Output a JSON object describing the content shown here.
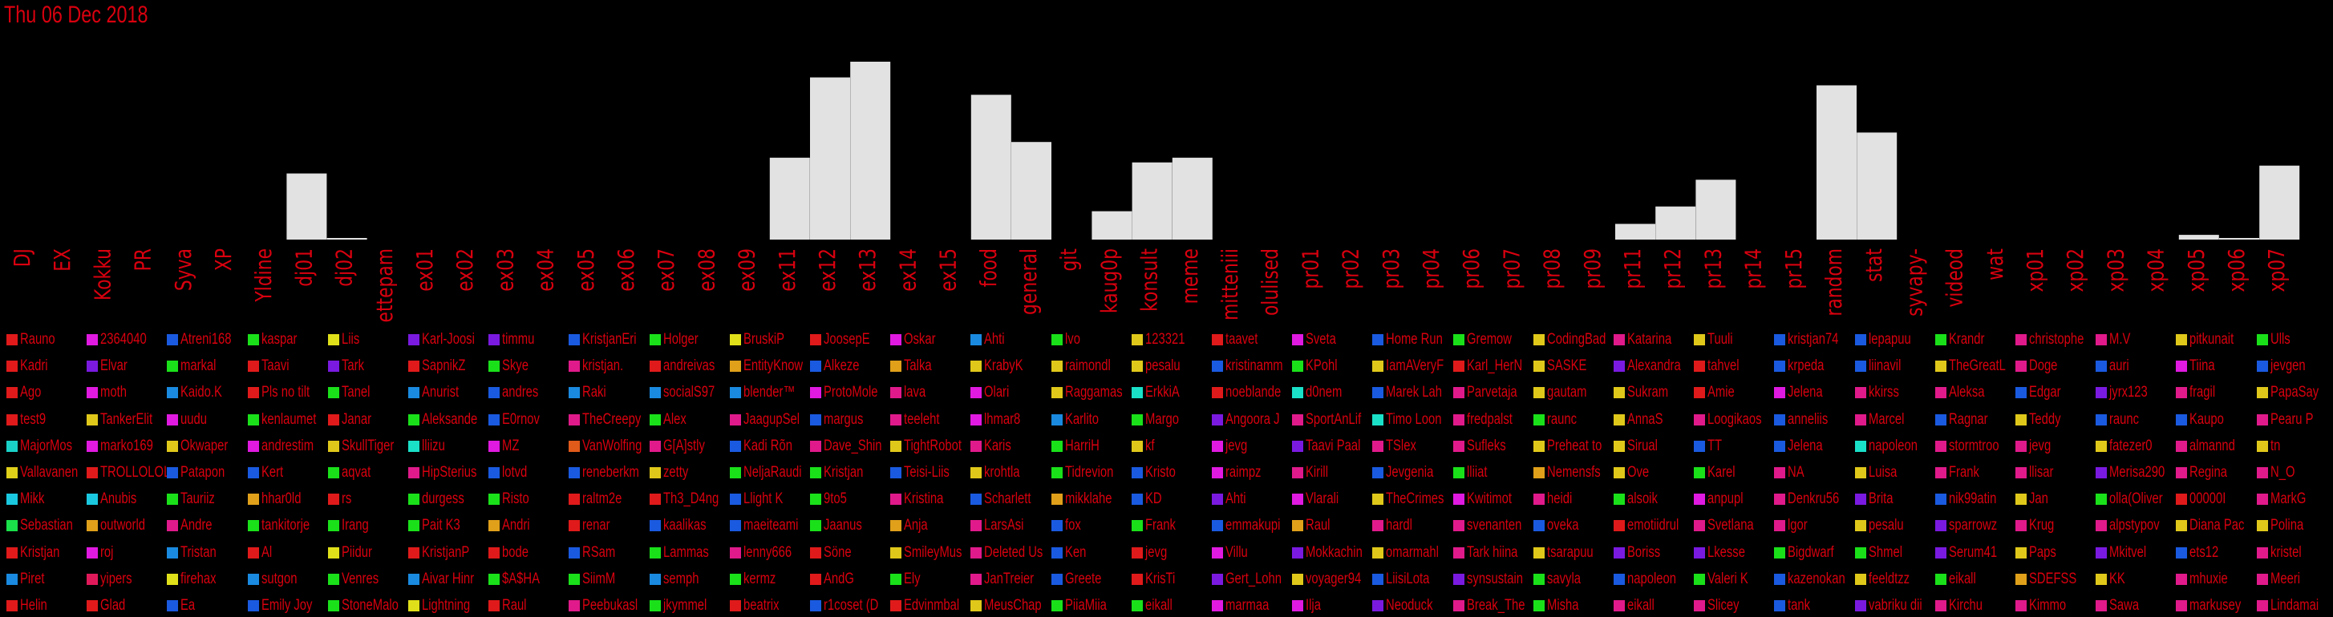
{
  "date_title": "Thu 06 Dec 2018",
  "colors": {
    "text": "#d9000f",
    "bar": "#e2e2e2",
    "background": "#000000"
  },
  "chart_data": {
    "type": "bar",
    "title": "Thu 06 Dec 2018",
    "categories": [
      "DJ",
      "EX",
      "Kokku",
      "PR",
      "Syva",
      "XP",
      "Yldine",
      "dj01",
      "dj02",
      "ettepam",
      "ex01",
      "ex02",
      "ex03",
      "ex04",
      "ex05",
      "ex06",
      "ex07",
      "ex08",
      "ex09",
      "ex11",
      "ex12",
      "ex13",
      "ex14",
      "ex15",
      "food",
      "general",
      "git",
      "kaug0p",
      "konsult",
      "meme",
      "mitteniii",
      "olulised",
      "pr01",
      "pr02",
      "pr03",
      "pr04",
      "pr06",
      "pr07",
      "pr08",
      "pr09",
      "pr11",
      "pr12",
      "pr13",
      "pr14",
      "pr15",
      "random",
      "stat",
      "syvapy-",
      "videod",
      "wat",
      "xp01",
      "xp02",
      "xp03",
      "xp04",
      "xp05",
      "xp06",
      "xp07"
    ],
    "values": [
      0,
      0,
      0,
      0,
      0,
      0,
      0,
      42,
      1,
      0,
      0,
      0,
      0,
      0,
      0,
      0,
      0,
      0,
      0,
      52,
      103,
      113,
      0,
      0,
      92,
      62,
      0,
      18,
      49,
      52,
      0,
      0,
      0,
      0,
      0,
      0,
      0,
      0,
      0,
      0,
      10,
      21,
      38,
      0,
      0,
      98,
      68,
      0,
      0,
      0,
      0,
      0,
      0,
      0,
      3,
      1,
      47
    ],
    "ylim": [
      0,
      113
    ],
    "grid": false,
    "legend": "bottom"
  },
  "legend_columns": [
    [
      [
        "Rauno",
        "#e01a1a"
      ],
      [
        "Kadri",
        "#e01a1a"
      ],
      [
        "Ago",
        "#e01a1a"
      ],
      [
        "test9",
        "#e01a1a"
      ],
      [
        "MajorMos",
        "#1ad1c8"
      ],
      [
        "Vallavanen",
        "#e0d01a"
      ],
      [
        "Mikk",
        "#1ac8e0"
      ],
      [
        "Sebastian",
        "#1ae04a"
      ],
      [
        "Kristjan",
        "#e01a1a"
      ],
      [
        "Piret",
        "#1a8ae0"
      ],
      [
        "Helin",
        "#e01a1a"
      ]
    ],
    [
      [
        "2364040",
        "#e01ae0"
      ],
      [
        "Elvar",
        "#7a1ae0"
      ],
      [
        "moth",
        "#e01ae0"
      ],
      [
        "TankerElit",
        "#e0c81a"
      ],
      [
        "marko169",
        "#e01ae0"
      ],
      [
        "TROLLOLOL",
        "#e01a1a"
      ],
      [
        "Anubis",
        "#1ac8e0"
      ],
      [
        "outworld",
        "#e0a01a"
      ],
      [
        "roj",
        "#e01ae0"
      ],
      [
        "yipers",
        "#e01a5a"
      ],
      [
        "Glad",
        "#e01a1a"
      ]
    ],
    [
      [
        "Atreni168",
        "#1a5ae0"
      ],
      [
        "markal",
        "#1ae01a"
      ],
      [
        "Kaido.K",
        "#1a8ae0"
      ],
      [
        "uudu",
        "#e01ae0"
      ],
      [
        "Okwaper",
        "#e0c81a"
      ],
      [
        "Patapon",
        "#1a5ae0"
      ],
      [
        "Tauriiz",
        "#1ae01a"
      ],
      [
        "Andre",
        "#e01a8a"
      ],
      [
        "Tristan",
        "#1a8ae0"
      ],
      [
        "firehax",
        "#e0e01a"
      ],
      [
        "Ea",
        "#1a5ae0"
      ]
    ],
    [
      [
        "kaspar",
        "#1ae01a"
      ],
      [
        "Taavi",
        "#e01a1a"
      ],
      [
        "Pls no tilt",
        "#e01a1a"
      ],
      [
        "kenlaumet",
        "#1ae01a"
      ],
      [
        "andrestim",
        "#e01ae0"
      ],
      [
        "Kert",
        "#1a5ae0"
      ],
      [
        "hhar0ld",
        "#e0a01a"
      ],
      [
        "tankitorje",
        "#1ae01a"
      ],
      [
        "Al",
        "#e01a1a"
      ],
      [
        "sutgon",
        "#1a8ae0"
      ],
      [
        "Emily Joy",
        "#1a5ae0"
      ]
    ],
    [
      [
        "Liis",
        "#e0e01a"
      ],
      [
        "Tark",
        "#7a1ae0"
      ],
      [
        "Tanel",
        "#1ae01a"
      ],
      [
        "Janar",
        "#e01a1a"
      ],
      [
        "SkullTiger",
        "#e0c81a"
      ],
      [
        "aqvat",
        "#1ae01a"
      ],
      [
        "rs",
        "#e01a1a"
      ],
      [
        "Irang",
        "#1ae01a"
      ],
      [
        "Piidur",
        "#e0e01a"
      ],
      [
        "Venres",
        "#1ae01a"
      ],
      [
        "StoneMalo",
        "#1ae01a"
      ]
    ],
    [
      [
        "Karl-Joosi",
        "#7a1ae0"
      ],
      [
        "SapnikZ",
        "#e01a1a"
      ],
      [
        "Anurist",
        "#1a8ae0"
      ],
      [
        "Aleksande",
        "#1ae01a"
      ],
      [
        "lliizu",
        "#1ae0c8"
      ],
      [
        "HipSterius",
        "#e01a8a"
      ],
      [
        "durgess",
        "#1ae01a"
      ],
      [
        "Pait K3",
        "#1ae01a"
      ],
      [
        "KristjanP",
        "#e01a1a"
      ],
      [
        "Aivar Hinr",
        "#1a8ae0"
      ],
      [
        "Lightning",
        "#e0e01a"
      ]
    ],
    [
      [
        "timmu",
        "#7a1ae0"
      ],
      [
        "Skye",
        "#1ae01a"
      ],
      [
        "andres",
        "#1a5ae0"
      ],
      [
        "E0rnov",
        "#1a5ae0"
      ],
      [
        "MZ",
        "#e01ae0"
      ],
      [
        "lotvd",
        "#1a5ae0"
      ],
      [
        "Risto",
        "#1ae01a"
      ],
      [
        "Andri",
        "#e0a01a"
      ],
      [
        "bode",
        "#e01a1a"
      ],
      [
        "$A$HA",
        "#1ae01a"
      ],
      [
        "Raul",
        "#e01a1a"
      ]
    ],
    [
      [
        "KristjanEri",
        "#1a5ae0"
      ],
      [
        "kristjan.",
        "#e01a8a"
      ],
      [
        "Raki",
        "#1a8ae0"
      ],
      [
        "TheCreepy",
        "#e01a8a"
      ],
      [
        "VanWolfing",
        "#e05a1a"
      ],
      [
        "reneberkm",
        "#1a5ae0"
      ],
      [
        "raltm2e",
        "#e01a1a"
      ],
      [
        "renar",
        "#e01a1a"
      ],
      [
        "RSam",
        "#1a5ae0"
      ],
      [
        "SiimM",
        "#1ae01a"
      ],
      [
        "Peebukasl",
        "#e01a8a"
      ]
    ],
    [
      [
        "Holger",
        "#1ae01a"
      ],
      [
        "andreivas",
        "#e01a1a"
      ],
      [
        "socialS97",
        "#1a8ae0"
      ],
      [
        "Alex",
        "#1ae01a"
      ],
      [
        "G[A]stly",
        "#e01a8a"
      ],
      [
        "zetty",
        "#e0c81a"
      ],
      [
        "Th3_D4ng",
        "#e01a1a"
      ],
      [
        "kaalikas",
        "#1a5ae0"
      ],
      [
        "Lammas",
        "#1ae01a"
      ],
      [
        "semph",
        "#1a8ae0"
      ],
      [
        "jkymmel",
        "#1ae01a"
      ]
    ],
    [
      [
        "BruskiP",
        "#e0e01a"
      ],
      [
        "EntityKnow",
        "#e0a01a"
      ],
      [
        "blender™",
        "#1a8ae0"
      ],
      [
        "JaagupSel",
        "#e01a8a"
      ],
      [
        "Kadi Rõn",
        "#1a5ae0"
      ],
      [
        "NeljaRaudi",
        "#1ae01a"
      ],
      [
        "Llight K",
        "#1a5ae0"
      ],
      [
        "maeiteami",
        "#1a5ae0"
      ],
      [
        "lenny666",
        "#e01a8a"
      ],
      [
        "kermz",
        "#1ae01a"
      ],
      [
        "beatrix",
        "#e01a1a"
      ]
    ],
    [
      [
        "JoosepE",
        "#e01a1a"
      ],
      [
        "Alkeze",
        "#1a5ae0"
      ],
      [
        "ProtoMole",
        "#e01ae0"
      ],
      [
        "margus",
        "#1a5ae0"
      ],
      [
        "Dave_Shin",
        "#e01a8a"
      ],
      [
        "Kristjan",
        "#1ae01a"
      ],
      [
        "9to5",
        "#1ae01a"
      ],
      [
        "Jaanus",
        "#1ae01a"
      ],
      [
        "Söne",
        "#e01a1a"
      ],
      [
        "AndG",
        "#e01a1a"
      ],
      [
        "r1coset (D",
        "#1a5ae0"
      ]
    ],
    [
      [
        "Oskar",
        "#e01ae0"
      ],
      [
        "Talka",
        "#e0a01a"
      ],
      [
        "lava",
        "#e01a8a"
      ],
      [
        "teeleht",
        "#e01a8a"
      ],
      [
        "TightRobot",
        "#e0c81a"
      ],
      [
        "Teisi-Liis",
        "#1a5ae0"
      ],
      [
        "Kristina",
        "#e01a8a"
      ],
      [
        "Anja",
        "#e0a01a"
      ],
      [
        "SmileyMus",
        "#e0c81a"
      ],
      [
        "Ely",
        "#1ae01a"
      ],
      [
        "Edvinmbal",
        "#e01a1a"
      ]
    ],
    [
      [
        "Ahti",
        "#1a8ae0"
      ],
      [
        "KrabyK",
        "#e0c81a"
      ],
      [
        "Olari",
        "#e01ae0"
      ],
      [
        "lhmar8",
        "#e01ae0"
      ],
      [
        "Karis",
        "#e01a8a"
      ],
      [
        "krohtla",
        "#e0c81a"
      ],
      [
        "Scharlett",
        "#1a5ae0"
      ],
      [
        "LarsAsi",
        "#e01a8a"
      ],
      [
        "Deleted Us",
        "#e01a8a"
      ],
      [
        "JanTreier",
        "#e01a8a"
      ],
      [
        "MeusChap",
        "#e0c81a"
      ]
    ],
    [
      [
        "lvo",
        "#1ae01a"
      ],
      [
        "raimondl",
        "#e0c81a"
      ],
      [
        "Raggamas",
        "#e0c81a"
      ],
      [
        "Karlito",
        "#1a8ae0"
      ],
      [
        "HarriH",
        "#1ae01a"
      ],
      [
        "Tidrevion",
        "#1ae01a"
      ],
      [
        "mikklahe",
        "#e0a01a"
      ],
      [
        "fox",
        "#1a5ae0"
      ],
      [
        "Ken",
        "#1a5ae0"
      ],
      [
        "Greete",
        "#1a5ae0"
      ],
      [
        "PiiaMiia",
        "#1ae01a"
      ]
    ],
    [
      [
        "123321",
        "#e0c81a"
      ],
      [
        "pesalu",
        "#e0c81a"
      ],
      [
        "ErkkiA",
        "#1ae0c8"
      ],
      [
        "Margo",
        "#1ae01a"
      ],
      [
        "kf",
        "#e0c81a"
      ],
      [
        "Kristo",
        "#1a5ae0"
      ],
      [
        "KD",
        "#1a5ae0"
      ],
      [
        "Frank",
        "#1ae01a"
      ],
      [
        "jevg",
        "#e01a1a"
      ],
      [
        "KrisTi",
        "#e01a1a"
      ],
      [
        "eikall",
        "#1ae01a"
      ]
    ],
    [
      [
        "taavet",
        "#e01a1a"
      ],
      [
        "kristinamm",
        "#1a5ae0"
      ],
      [
        "noeblande",
        "#e01a1a"
      ],
      [
        "Angoora J",
        "#7a1ae0"
      ],
      [
        "jevg",
        "#e01ae0"
      ],
      [
        "raimpz",
        "#e01ae0"
      ],
      [
        "Ahti",
        "#7a1ae0"
      ],
      [
        "emmakupi",
        "#1a5ae0"
      ],
      [
        "Villu",
        "#e01ae0"
      ],
      [
        "Gert_Lohn",
        "#7a1ae0"
      ],
      [
        "marmaa",
        "#e01ae0"
      ]
    ],
    [
      [
        "Sveta",
        "#e01ae0"
      ],
      [
        "KPohl",
        "#1ae01a"
      ],
      [
        "d0nem",
        "#1ae0c8"
      ],
      [
        "SportAnLif",
        "#e01a8a"
      ],
      [
        "Taavi Paal",
        "#7a1ae0"
      ],
      [
        "Kirill",
        "#e01a8a"
      ],
      [
        "Vlarali",
        "#e01ae0"
      ],
      [
        "Raul",
        "#e0a01a"
      ],
      [
        "Mokkachin",
        "#7a1ae0"
      ],
      [
        "voyager94",
        "#e0c81a"
      ],
      [
        "Ilja",
        "#e01ae0"
      ]
    ],
    [
      [
        "Home Run",
        "#1a5ae0"
      ],
      [
        "IamAVeryF",
        "#e0c81a"
      ],
      [
        "Marek Lah",
        "#1a5ae0"
      ],
      [
        "Timo Loon",
        "#1ae0c8"
      ],
      [
        "TSlex",
        "#e01a8a"
      ],
      [
        "Jevgenia",
        "#1a5ae0"
      ],
      [
        "TheCrimes",
        "#e0c81a"
      ],
      [
        "hardl",
        "#e01a8a"
      ],
      [
        "omarmahl",
        "#e0c81a"
      ],
      [
        "LiisiLota",
        "#1a5ae0"
      ],
      [
        "Neoduck",
        "#7a1ae0"
      ]
    ],
    [
      [
        "Gremow",
        "#1ae01a"
      ],
      [
        "Karl_HerN",
        "#e01a1a"
      ],
      [
        "Parvetaja",
        "#e01a8a"
      ],
      [
        "fredpalst",
        "#e01a8a"
      ],
      [
        "Sufleks",
        "#e01a8a"
      ],
      [
        "lliiat",
        "#1ae01a"
      ],
      [
        "Kwitimot",
        "#e01ae0"
      ],
      [
        "svenanten",
        "#e01a8a"
      ],
      [
        "Tark hiina",
        "#e01a8a"
      ],
      [
        "synsustain",
        "#7a1ae0"
      ],
      [
        "Break_The",
        "#e01a8a"
      ]
    ],
    [
      [
        "CodingBad",
        "#e0c81a"
      ],
      [
        "SASKE",
        "#e0c81a"
      ],
      [
        "gautam",
        "#e0c81a"
      ],
      [
        "raunc",
        "#1ae01a"
      ],
      [
        "Preheat to",
        "#e0c81a"
      ],
      [
        "Nemensfs",
        "#e0a01a"
      ],
      [
        "heidi",
        "#e01a8a"
      ],
      [
        "oveka",
        "#1a5ae0"
      ],
      [
        "tsarapuu",
        "#e0c81a"
      ],
      [
        "savyla",
        "#1ae01a"
      ],
      [
        "Misha",
        "#1ae01a"
      ]
    ],
    [
      [
        "Katarina",
        "#e01a8a"
      ],
      [
        "Alexandra",
        "#7a1ae0"
      ],
      [
        "Sukram",
        "#e0c81a"
      ],
      [
        "AnnaS",
        "#e0c81a"
      ],
      [
        "Sirual",
        "#e0c81a"
      ],
      [
        "Ove",
        "#e0c81a"
      ],
      [
        "alsoik",
        "#1ae01a"
      ],
      [
        "emotiidrul",
        "#e01a1a"
      ],
      [
        "Boriss",
        "#7a1ae0"
      ],
      [
        "napoleon",
        "#1a5ae0"
      ],
      [
        "eikall",
        "#e01a8a"
      ]
    ],
    [
      [
        "Tuuli",
        "#e0c81a"
      ],
      [
        "tahvel",
        "#e01a1a"
      ],
      [
        "Amie",
        "#e01a1a"
      ],
      [
        "Loogikaos",
        "#e01a8a"
      ],
      [
        "TT",
        "#1a5ae0"
      ],
      [
        "Karel",
        "#1ae01a"
      ],
      [
        "anpupl",
        "#e01ae0"
      ],
      [
        "Svetlana",
        "#e01a8a"
      ],
      [
        "Lkesse",
        "#7a1ae0"
      ],
      [
        "Valeri K",
        "#1ae01a"
      ],
      [
        "Slicey",
        "#e01a8a"
      ]
    ],
    [
      [
        "kristjan74",
        "#1a5ae0"
      ],
      [
        "krpeda",
        "#1a5ae0"
      ],
      [
        "Jelena",
        "#e01ae0"
      ],
      [
        "anneliis",
        "#1a5ae0"
      ],
      [
        "Jelena",
        "#1a5ae0"
      ],
      [
        "NA",
        "#e01a8a"
      ],
      [
        "Denkru56",
        "#e01a8a"
      ],
      [
        "lgor",
        "#e01a8a"
      ],
      [
        "Bigdwarf",
        "#1ae01a"
      ],
      [
        "kazenokan",
        "#1a5ae0"
      ],
      [
        "tank",
        "#1a5ae0"
      ]
    ],
    [
      [
        "lepapuu",
        "#1a5ae0"
      ],
      [
        "liinavil",
        "#1a5ae0"
      ],
      [
        "kkirss",
        "#e01a8a"
      ],
      [
        "Marcel",
        "#e01a8a"
      ],
      [
        "napoleon",
        "#1ae0c8"
      ],
      [
        "Luisa",
        "#e0c81a"
      ],
      [
        "Brita",
        "#7a1ae0"
      ],
      [
        "pesalu",
        "#e0c81a"
      ],
      [
        "Shmel",
        "#1ae01a"
      ],
      [
        "feeldtzz",
        "#e0c81a"
      ],
      [
        "vabriku dii",
        "#7a1ae0"
      ]
    ],
    [
      [
        "Krandr",
        "#1ae01a"
      ],
      [
        "TheGreatL",
        "#e0c81a"
      ],
      [
        "Aleksa",
        "#e01a8a"
      ],
      [
        "Ragnar",
        "#1a5ae0"
      ],
      [
        "stormtroo",
        "#e01a8a"
      ],
      [
        "Frank",
        "#e01a8a"
      ],
      [
        "nik99atin",
        "#1a5ae0"
      ],
      [
        "sparrowz",
        "#7a1ae0"
      ],
      [
        "Serum41",
        "#7a1ae0"
      ],
      [
        "eikall",
        "#1ae01a"
      ],
      [
        "Kirchu",
        "#e01a8a"
      ]
    ],
    [
      [
        "christophe",
        "#e01a8a"
      ],
      [
        "Doge",
        "#e01a8a"
      ],
      [
        "Edgar",
        "#1a5ae0"
      ],
      [
        "Teddy",
        "#e0c81a"
      ],
      [
        "jevg",
        "#e01a8a"
      ],
      [
        "llisar",
        "#e01a8a"
      ],
      [
        "Jan",
        "#e0c81a"
      ],
      [
        "Krug",
        "#e01a8a"
      ],
      [
        "Paps",
        "#e0c81a"
      ],
      [
        "SDEFSS",
        "#e0a01a"
      ],
      [
        "Kimmo",
        "#e01a8a"
      ]
    ],
    [
      [
        "M.V",
        "#e01a8a"
      ],
      [
        "auri",
        "#1a5ae0"
      ],
      [
        "jyrx123",
        "#7a1ae0"
      ],
      [
        "raunc",
        "#1a5ae0"
      ],
      [
        "fatezer0",
        "#e0c81a"
      ],
      [
        "Merisa290",
        "#7a1ae0"
      ],
      [
        "olla(Oliver",
        "#1ae01a"
      ],
      [
        "alpstypov",
        "#e01a8a"
      ],
      [
        "Mkitvel",
        "#7a1ae0"
      ],
      [
        "KK",
        "#e0c81a"
      ],
      [
        "Sawa",
        "#e01a8a"
      ]
    ],
    [
      [
        "pitkunait",
        "#e0c81a"
      ],
      [
        "Tiina",
        "#e01ae0"
      ],
      [
        "fragil",
        "#e01a8a"
      ],
      [
        "Kaupo",
        "#1a5ae0"
      ],
      [
        "almannd",
        "#e01a8a"
      ],
      [
        "Regina",
        "#e01a8a"
      ],
      [
        "00000I",
        "#e01a1a"
      ],
      [
        "Diana Pac",
        "#e0c81a"
      ],
      [
        "ets12",
        "#1a5ae0"
      ],
      [
        "mhuxie",
        "#e01a8a"
      ],
      [
        "markusey",
        "#e01a8a"
      ]
    ],
    [
      [
        "Ulls",
        "#1ae01a"
      ],
      [
        "jevgen",
        "#1a5ae0"
      ],
      [
        "PapaSay",
        "#e0c81a"
      ],
      [
        "Pearu P",
        "#e01a8a"
      ],
      [
        "tn",
        "#e0c81a"
      ],
      [
        "N_O",
        "#e01a8a"
      ],
      [
        "MarkG",
        "#e01a8a"
      ],
      [
        "Polina",
        "#e0c81a"
      ],
      [
        "kristel",
        "#e01a8a"
      ],
      [
        "Meeri",
        "#e01a8a"
      ],
      [
        "Lindamai",
        "#e01a8a"
      ]
    ]
  ]
}
